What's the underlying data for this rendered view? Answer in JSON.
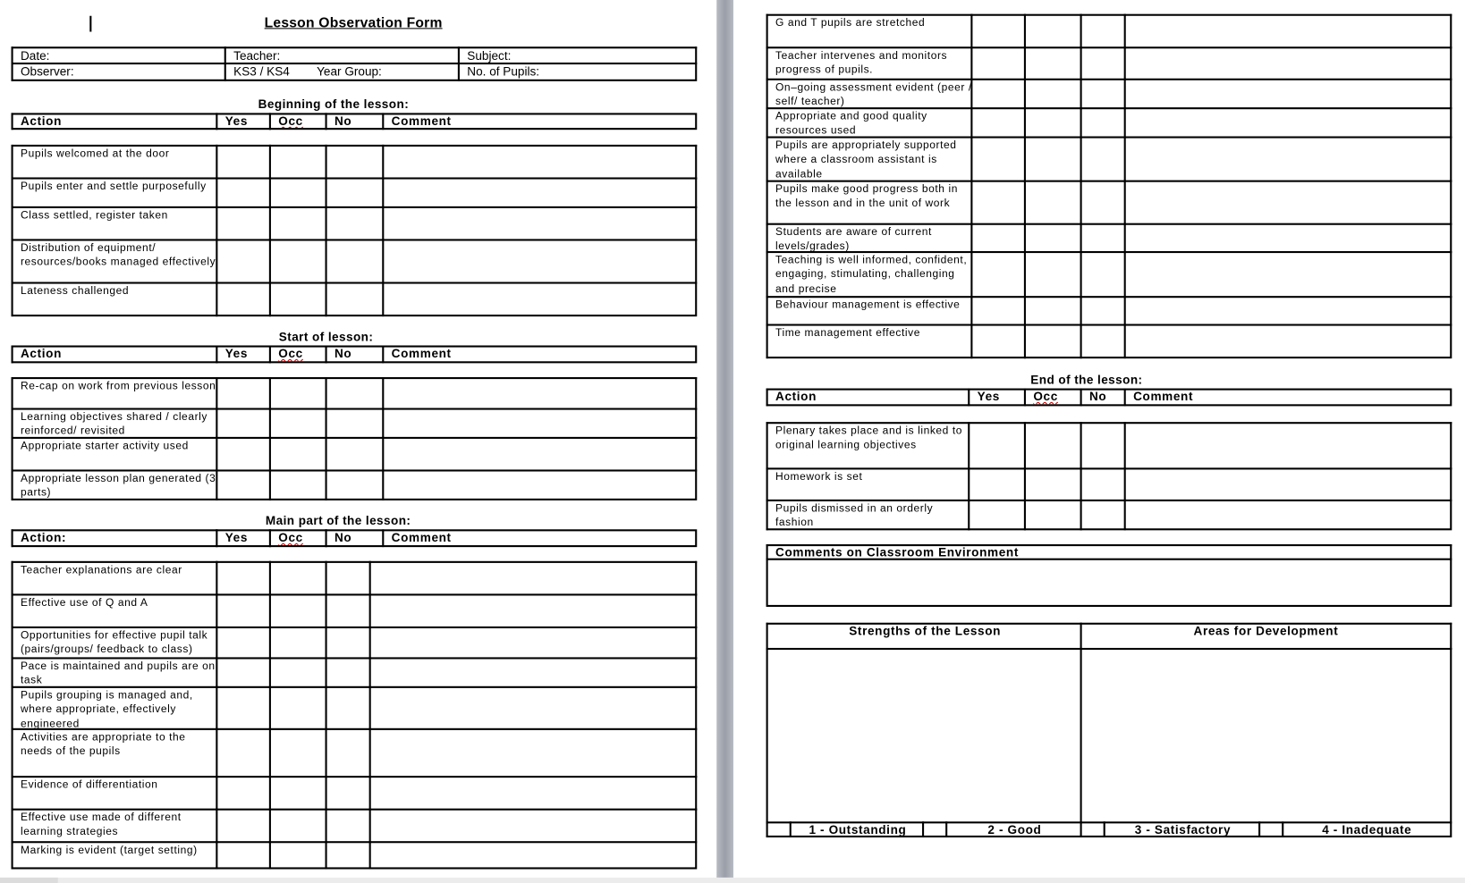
{
  "document": {
    "title": "Lesson Observation Form",
    "info": {
      "date_label": "Date:",
      "teacher_label": "Teacher:",
      "subject_label": "Subject:",
      "observer_label": "Observer:",
      "ks_label": "KS3 / KS4",
      "year_group_label": "Year Group:",
      "pupils_label": "No. of Pupils:"
    },
    "columns": {
      "action": "Action",
      "action_colon": "Action:",
      "yes": "Yes",
      "occ": "Occ",
      "no": "No",
      "comment": "Comment"
    },
    "beginning": {
      "heading": "Beginning of the lesson:",
      "rows": [
        "Pupils welcomed at the door",
        "Pupils enter and settle purposefully",
        "Class settled, register taken",
        "Distribution of equipment/ resources/books managed effectively",
        "Lateness challenged"
      ]
    },
    "start": {
      "heading": "Start of lesson:",
      "rows": [
        "Re-cap on work from previous lesson",
        "Learning objectives shared / clearly reinforced/ revisited",
        "Appropriate starter activity used",
        "Appropriate lesson plan generated (3 parts)"
      ]
    },
    "main": {
      "heading": "Main part of the lesson:",
      "rows": [
        "Teacher explanations are clear",
        "Effective use of Q and A",
        "Opportunities for effective pupil talk (pairs/groups/ feedback to class)",
        "Pace is maintained and pupils are on task",
        "Pupils grouping is managed and, where appropriate, effectively engineered",
        "Activities are appropriate to the needs of the pupils",
        "Evidence of differentiation",
        "Effective use made of different learning strategies",
        "Marking is evident (target setting)"
      ]
    },
    "main_cont": {
      "rows": [
        "G and T pupils are stretched",
        "Teacher intervenes and monitors progress of pupils.",
        "On–going assessment evident (peer / self/ teacher)",
        "Appropriate and good quality resources used",
        "Pupils are appropriately supported where a classroom assistant is available",
        "Pupils make good progress both in the lesson and in the unit of work",
        "Students are aware of current levels/grades)",
        "Teaching is well informed, confident, engaging, stimulating, challenging and precise",
        "Behaviour management is effective",
        "Time management effective"
      ]
    },
    "end": {
      "heading": "End of the lesson:",
      "rows": [
        "Plenary takes place and is linked to original learning objectives",
        "Homework is set",
        "Pupils dismissed in an orderly fashion"
      ]
    },
    "environment": {
      "heading": "Comments on Classroom Environment"
    },
    "summary": {
      "strengths": "Strengths of the Lesson",
      "development": "Areas for Development",
      "ratings": [
        "1 - Outstanding",
        "2 - Good",
        "3 - Satisfactory",
        "4 - Inadequate"
      ]
    }
  }
}
